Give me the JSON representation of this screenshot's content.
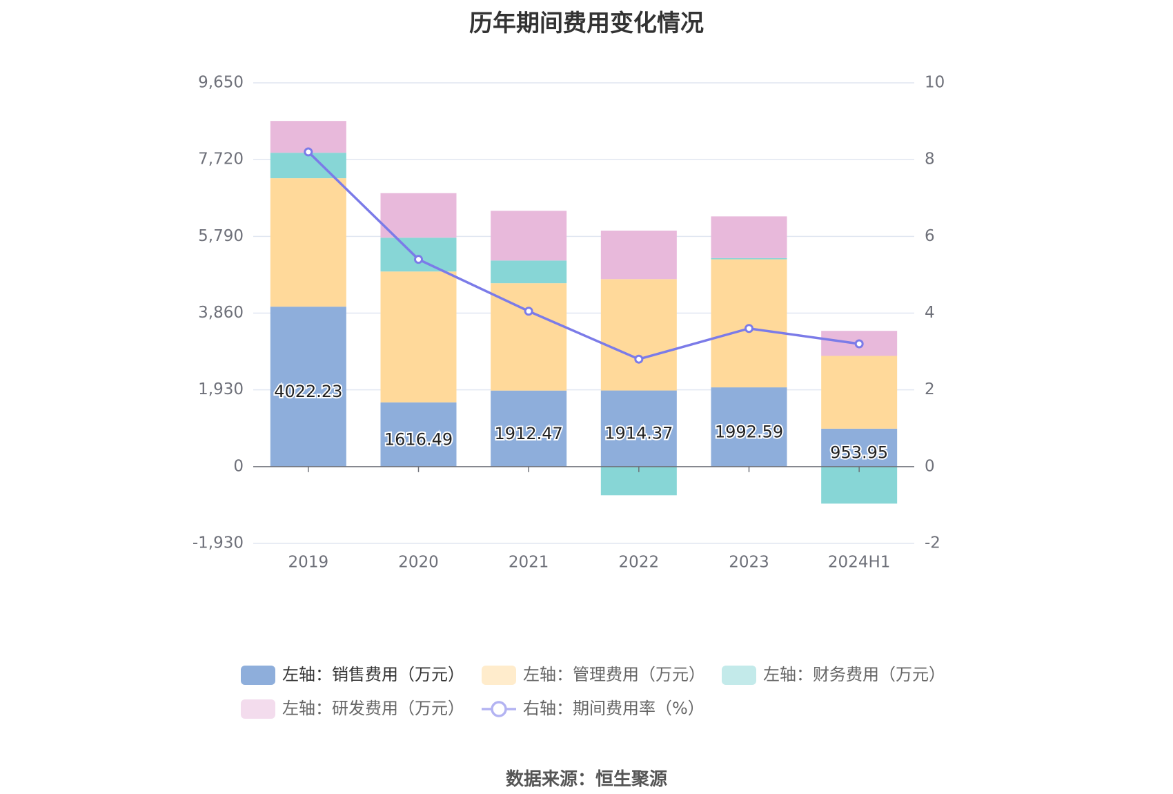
{
  "title": "历年期间费用变化情况",
  "source": "数据来源：恒生聚源",
  "chart_data": {
    "type": "bar",
    "categories": [
      "2019",
      "2020",
      "2021",
      "2022",
      "2023",
      "2024H1"
    ],
    "series": [
      {
        "name": "左轴：销售费用（万元）",
        "axis": "left",
        "stack": "cost",
        "color": "#8eaedb",
        "values": [
          4022.23,
          1616.49,
          1912.47,
          1914.37,
          1992.59,
          953.95
        ],
        "show_labels": true
      },
      {
        "name": "左轴：管理费用（万元）",
        "axis": "left",
        "stack": "cost",
        "color": "#ffd99a",
        "values": [
          3230,
          3290,
          2700,
          2800,
          3220,
          1830
        ],
        "show_labels": false
      },
      {
        "name": "左轴：财务费用（万元）",
        "axis": "left",
        "stack": "cost",
        "color": "#87d6d6",
        "values": [
          640,
          850,
          570,
          -720,
          30,
          -930
        ],
        "show_labels": false
      },
      {
        "name": "左轴：研发费用（万元）",
        "axis": "left",
        "stack": "cost",
        "color": "#e8b9db",
        "values": [
          800,
          1120,
          1250,
          1220,
          1050,
          630
        ],
        "show_labels": false
      },
      {
        "name": "右轴：期间费用率（%）",
        "axis": "right",
        "type": "line",
        "color": "#7b7be8",
        "values": [
          8.2,
          5.4,
          4.05,
          2.8,
          3.6,
          3.2
        ],
        "show_labels": false
      }
    ],
    "left_axis": {
      "min": -1930,
      "max": 9650,
      "ticks": [
        -1930,
        0,
        1930,
        3860,
        5790,
        7720,
        9650
      ],
      "tick_labels": [
        "-1,930",
        "0",
        "1,930",
        "3,860",
        "5,790",
        "7,720",
        "9,650"
      ]
    },
    "right_axis": {
      "min": -2,
      "max": 10,
      "ticks": [
        -2,
        0,
        2,
        4,
        6,
        8,
        10
      ]
    },
    "grid": true,
    "legend_position": "bottom"
  }
}
